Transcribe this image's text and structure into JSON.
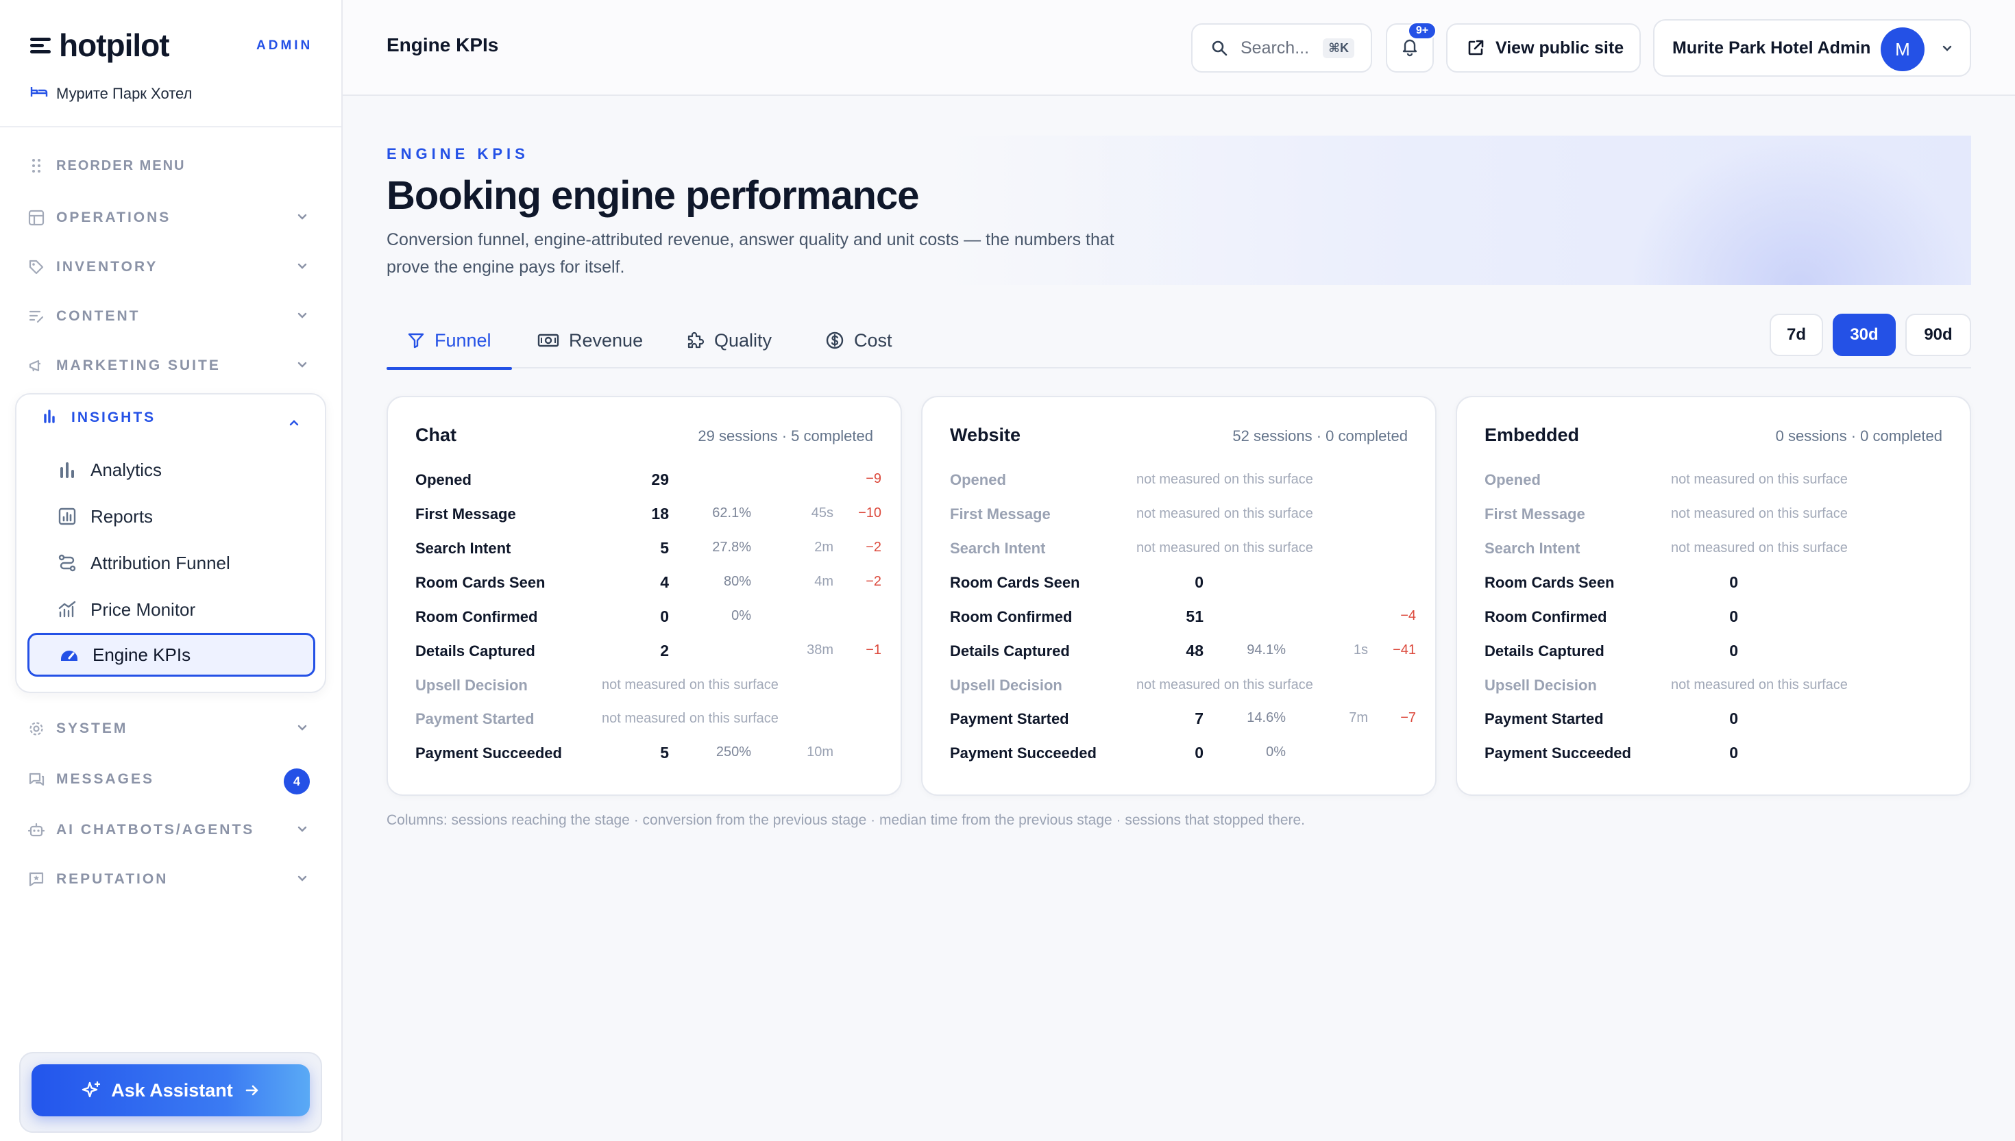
{
  "sidebar": {
    "brand": "hotpilot",
    "admin_tag": "ADMIN",
    "hotel_name": "Мурите Парк Хотел",
    "reorder_label": "REORDER MENU",
    "groups": {
      "operations": "OPERATIONS",
      "inventory": "INVENTORY",
      "content": "CONTENT",
      "marketing": "MARKETING SUITE",
      "insights": "INSIGHTS",
      "system": "SYSTEM",
      "messages": "MESSAGES",
      "ai": "AI CHATBOTS/AGENTS",
      "reputation": "REPUTATION"
    },
    "messages_count": "4",
    "insights_items": [
      "Analytics",
      "Reports",
      "Attribution Funnel",
      "Price Monitor",
      "Engine KPIs"
    ],
    "assistant_label": "Ask Assistant"
  },
  "topbar": {
    "title": "Engine KPIs",
    "search_placeholder": "Search...",
    "search_shortcut": "⌘K",
    "notifications_badge": "9+",
    "public_site_label": "View public site",
    "user_name": "Murite Park Hotel Admin",
    "avatar_initial": "M"
  },
  "page": {
    "eyebrow": "ENGINE KPIS",
    "title": "Booking engine performance",
    "subtitle": "Conversion funnel, engine-attributed revenue, answer quality and unit costs — the numbers that prove the engine pays for itself.",
    "tabs": [
      "Funnel",
      "Revenue",
      "Quality",
      "Cost"
    ],
    "ranges": [
      "7d",
      "30d",
      "90d"
    ],
    "not_measured": "not measured on this surface",
    "footnote": "Columns: sessions reaching the stage · conversion from the previous stage · median time from the previous stage · sessions that stopped there."
  },
  "cards": [
    {
      "title": "Chat",
      "meta": "29 sessions · 5 completed",
      "rows": [
        {
          "label": "Opened",
          "count": "29",
          "pct": "",
          "time": "",
          "drop": "−9"
        },
        {
          "label": "First Message",
          "count": "18",
          "pct": "62.1%",
          "time": "45s",
          "drop": "−10"
        },
        {
          "label": "Search Intent",
          "count": "5",
          "pct": "27.8%",
          "time": "2m",
          "drop": "−2"
        },
        {
          "label": "Room Cards Seen",
          "count": "4",
          "pct": "80%",
          "time": "4m",
          "drop": "−2"
        },
        {
          "label": "Room Confirmed",
          "count": "0",
          "pct": "0%",
          "time": "",
          "drop": ""
        },
        {
          "label": "Details Captured",
          "count": "2",
          "pct": "",
          "time": "38m",
          "drop": "−1"
        },
        {
          "label": "Upsell Decision",
          "na": true
        },
        {
          "label": "Payment Started",
          "na": true
        },
        {
          "label": "Payment Succeeded",
          "count": "5",
          "pct": "250%",
          "time": "10m",
          "drop": ""
        }
      ]
    },
    {
      "title": "Website",
      "meta": "52 sessions · 0 completed",
      "rows": [
        {
          "label": "Opened",
          "na": true
        },
        {
          "label": "First Message",
          "na": true
        },
        {
          "label": "Search Intent",
          "na": true
        },
        {
          "label": "Room Cards Seen",
          "count": "0",
          "pct": "",
          "time": "",
          "drop": ""
        },
        {
          "label": "Room Confirmed",
          "count": "51",
          "pct": "",
          "time": "",
          "drop": "−4"
        },
        {
          "label": "Details Captured",
          "count": "48",
          "pct": "94.1%",
          "time": "1s",
          "drop": "−41"
        },
        {
          "label": "Upsell Decision",
          "na": true
        },
        {
          "label": "Payment Started",
          "count": "7",
          "pct": "14.6%",
          "time": "7m",
          "drop": "−7"
        },
        {
          "label": "Payment Succeeded",
          "count": "0",
          "pct": "0%",
          "time": "",
          "drop": ""
        }
      ]
    },
    {
      "title": "Embedded",
      "meta": "0 sessions · 0 completed",
      "rows": [
        {
          "label": "Opened",
          "na": true
        },
        {
          "label": "First Message",
          "na": true
        },
        {
          "label": "Search Intent",
          "na": true
        },
        {
          "label": "Room Cards Seen",
          "count": "0",
          "pct": "",
          "time": "",
          "drop": ""
        },
        {
          "label": "Room Confirmed",
          "count": "0",
          "pct": "",
          "time": "",
          "drop": ""
        },
        {
          "label": "Details Captured",
          "count": "0",
          "pct": "",
          "time": "",
          "drop": ""
        },
        {
          "label": "Upsell Decision",
          "na": true
        },
        {
          "label": "Payment Started",
          "count": "0",
          "pct": "",
          "time": "",
          "drop": ""
        },
        {
          "label": "Payment Succeeded",
          "count": "0",
          "pct": "",
          "time": "",
          "drop": ""
        }
      ]
    }
  ],
  "colors": {
    "accent": "#2451e6",
    "drop": "#dc4a3d",
    "muted": "#9aa2b3"
  }
}
